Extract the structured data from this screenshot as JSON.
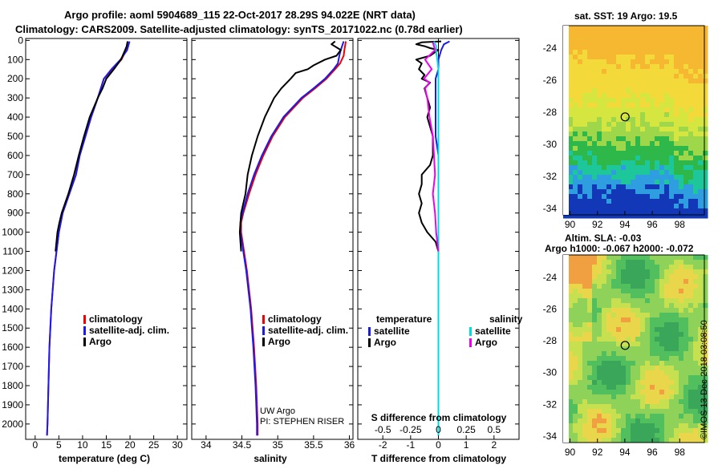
{
  "titles": {
    "line1": "Argo profile: aoml 5904689_115 22-Oct-2017 28.29S 94.022E (NRT data)",
    "line2": "Climatology: CARS2009. Satellite-adjusted climatology: synTS_20171022.nc (0.78d earlier)"
  },
  "colors": {
    "climatology": "#ee0000",
    "satellite": "#1a1aee",
    "argo": "#000000",
    "sat_sal": "#00dddd",
    "argo_sal": "#ee00ee"
  },
  "depth_ticks": [
    0,
    100,
    200,
    300,
    400,
    500,
    600,
    700,
    800,
    900,
    1000,
    1100,
    1200,
    1300,
    1400,
    1500,
    1600,
    1700,
    1800,
    1900,
    2000
  ],
  "chart_data": [
    {
      "type": "line",
      "name": "temperature",
      "xlabel": "temperature (deg C)",
      "ylabel": "depth",
      "xlim": [
        -2,
        32
      ],
      "ylim": [
        2080,
        -10
      ],
      "xticks": [
        0,
        5,
        10,
        15,
        20,
        25,
        30
      ],
      "legend": [
        "climatology",
        "satellite-adj. clim.",
        "Argo"
      ],
      "series": [
        {
          "name": "climatology",
          "depth": [
            5,
            50,
            100,
            150,
            200,
            300,
            400,
            500,
            600,
            700,
            800,
            900,
            1000,
            1200,
            1400,
            1600,
            1800,
            2000,
            2060
          ],
          "values": [
            19.5,
            19.2,
            18.2,
            16.3,
            14.5,
            13.2,
            11.8,
            10.6,
            9.4,
            8.6,
            7.2,
            5.8,
            5.0,
            4.0,
            3.4,
            3.0,
            2.8,
            2.6,
            2.5
          ]
        },
        {
          "name": "satellite-adj. clim.",
          "depth": [
            5,
            50,
            100,
            150,
            200,
            300,
            400,
            500,
            600,
            700,
            800,
            900,
            1000,
            1200,
            1400,
            1600,
            1800,
            2000,
            2060
          ],
          "values": [
            19.9,
            19.4,
            18.0,
            16.1,
            14.5,
            13.2,
            11.8,
            10.6,
            9.4,
            8.6,
            7.2,
            5.8,
            5.0,
            4.0,
            3.4,
            3.0,
            2.8,
            2.6,
            2.5
          ]
        },
        {
          "name": "Argo",
          "depth": [
            5,
            30,
            60,
            100,
            150,
            200,
            250,
            300,
            400,
            500,
            600,
            700,
            800,
            900,
            950,
            1000,
            1050,
            1100
          ],
          "values": [
            19.5,
            19.3,
            18.8,
            18.1,
            16.6,
            15.0,
            14.2,
            13.2,
            11.5,
            10.3,
            9.2,
            8.2,
            7.0,
            5.6,
            5.1,
            4.7,
            4.5,
            4.3
          ]
        }
      ]
    },
    {
      "type": "line",
      "name": "salinity",
      "xlabel": "salinity",
      "ylabel": "depth",
      "xlim": [
        33.8,
        36.05
      ],
      "ylim": [
        2080,
        -10
      ],
      "xticks": [
        34,
        34.5,
        35,
        35.5,
        36
      ],
      "legend": [
        "climatology",
        "satellite-adj. clim.",
        "Argo"
      ],
      "annotations": [
        "UW Argo",
        "PI: STEPHEN RISER"
      ],
      "series": [
        {
          "name": "climatology",
          "depth": [
            5,
            50,
            80,
            120,
            150,
            200,
            250,
            300,
            400,
            500,
            600,
            700,
            800,
            900,
            950,
            1000,
            1100,
            1200,
            1400,
            1600,
            1800,
            2000,
            2060
          ],
          "values": [
            35.95,
            35.93,
            35.92,
            35.87,
            35.8,
            35.68,
            35.52,
            35.35,
            35.1,
            34.93,
            34.8,
            34.69,
            34.6,
            34.52,
            34.49,
            34.49,
            34.53,
            34.57,
            34.63,
            34.67,
            34.7,
            34.72,
            34.72
          ]
        },
        {
          "name": "satellite-adj. clim.",
          "depth": [
            5,
            50,
            80,
            120,
            150,
            200,
            250,
            300,
            400,
            500,
            600,
            700,
            800,
            900,
            950,
            1000,
            1100,
            1200,
            1400,
            1600,
            1800,
            2000,
            2060
          ],
          "values": [
            35.92,
            35.88,
            35.86,
            35.84,
            35.78,
            35.66,
            35.5,
            35.33,
            35.08,
            34.91,
            34.78,
            34.67,
            34.58,
            34.51,
            34.48,
            34.48,
            34.52,
            34.56,
            34.62,
            34.66,
            34.69,
            34.71,
            34.71
          ]
        },
        {
          "name": "Argo",
          "depth": [
            5,
            20,
            50,
            80,
            100,
            130,
            150,
            170,
            200,
            250,
            300,
            400,
            500,
            600,
            700,
            800,
            850,
            900,
            950,
            1000,
            1050,
            1100
          ],
          "values": [
            35.8,
            35.75,
            35.88,
            35.82,
            35.66,
            35.5,
            35.42,
            35.25,
            35.18,
            35.05,
            34.95,
            34.82,
            34.72,
            34.64,
            34.58,
            34.55,
            34.52,
            34.49,
            34.48,
            34.47,
            34.48,
            34.49
          ]
        }
      ]
    },
    {
      "type": "line",
      "name": "difference",
      "xlabel": "T difference from climatology",
      "xlabel_top": "S difference from climatology",
      "xlim": [
        -2.9,
        2.9
      ],
      "ylim": [
        2080,
        -10
      ],
      "xticks": [
        -2,
        -1,
        0,
        1,
        2
      ],
      "xticks_sal": [
        "-0.5",
        "-0.25",
        "0",
        "0.25",
        "0.5"
      ],
      "legend_headers": [
        "temperature",
        "salinity"
      ],
      "legend_temp": [
        "satellite",
        "Argo"
      ],
      "legend_sal": [
        "satellite",
        "Argo"
      ],
      "series": [
        {
          "name": "temperature Argo",
          "depth": [
            5,
            10,
            20,
            30,
            40,
            50,
            60,
            80,
            100,
            120,
            150,
            180,
            200,
            220,
            250,
            300,
            350,
            400,
            500,
            600,
            650,
            700,
            750,
            800,
            850,
            900,
            950,
            1000,
            1050,
            1100
          ],
          "values": [
            0.1,
            -0.6,
            -0.8,
            -0.5,
            -0.3,
            0.0,
            -0.1,
            -0.3,
            -0.8,
            -0.6,
            -0.7,
            -0.5,
            -0.6,
            -0.3,
            -0.5,
            -0.4,
            -0.3,
            -0.4,
            -0.2,
            -0.2,
            -0.3,
            -0.6,
            -0.6,
            -0.7,
            -0.6,
            -0.7,
            -0.6,
            -0.4,
            -0.1,
            0.0
          ]
        },
        {
          "name": "temperature satellite",
          "depth": [
            5,
            20,
            50,
            100,
            150,
            200,
            300,
            400,
            500,
            600,
            800,
            1000,
            1200,
            1500,
            2000,
            2060
          ],
          "values": [
            0.4,
            0.2,
            0.1,
            0.0,
            0.0,
            -0.1,
            -0.1,
            -0.1,
            -0.1,
            0.0,
            0.0,
            0.0,
            0.0,
            0.0,
            0.0,
            0.0
          ]
        },
        {
          "name": "salinity satellite",
          "depth": [
            5,
            30,
            60,
            100,
            150,
            200,
            300,
            400,
            500,
            800,
            1000,
            1500,
            2060
          ],
          "values": [
            -0.04,
            -0.02,
            -0.02,
            -0.01,
            0.0,
            0.0,
            0.0,
            0.0,
            0.0,
            0.0,
            0.0,
            0.0,
            0.0
          ]
        },
        {
          "name": "salinity Argo",
          "depth": [
            10,
            50,
            100,
            150,
            200,
            220,
            250,
            300,
            400,
            500,
            600,
            700,
            800,
            900,
            1000,
            1100
          ],
          "values": [
            -0.05,
            -0.03,
            -0.12,
            -0.06,
            -0.13,
            -0.08,
            -0.12,
            -0.1,
            -0.08,
            -0.05,
            -0.04,
            -0.03,
            -0.05,
            -0.03,
            -0.02,
            0.0
          ]
        }
      ]
    },
    {
      "type": "heatmap",
      "name": "sat-sst-map",
      "title": "sat. SST: 19 Argo: 19.5",
      "xticks": [
        90,
        92,
        94,
        96,
        98
      ],
      "yticks": [
        -24,
        -26,
        -28,
        -30,
        -32,
        -34
      ],
      "xlim": [
        89.5,
        99.8
      ],
      "ylim": [
        -34.4,
        -22.6
      ],
      "marker": {
        "lon": 94.02,
        "lat": -28.29
      }
    },
    {
      "type": "heatmap",
      "name": "altimetry-sla-map",
      "title": "Altim. SLA: -0.03",
      "subtitle": "Argo h1000: -0.067 h2000: -0.072",
      "xticks": [
        90,
        92,
        94,
        96,
        98
      ],
      "yticks": [
        -24,
        -26,
        -28,
        -30,
        -32,
        -34
      ],
      "xlim": [
        89.5,
        99.8
      ],
      "ylim": [
        -34.4,
        -22.6
      ],
      "marker": {
        "lon": 94.02,
        "lat": -28.29
      }
    }
  ],
  "credit": "©IMOS 13-Dec-2018 03:08:50"
}
